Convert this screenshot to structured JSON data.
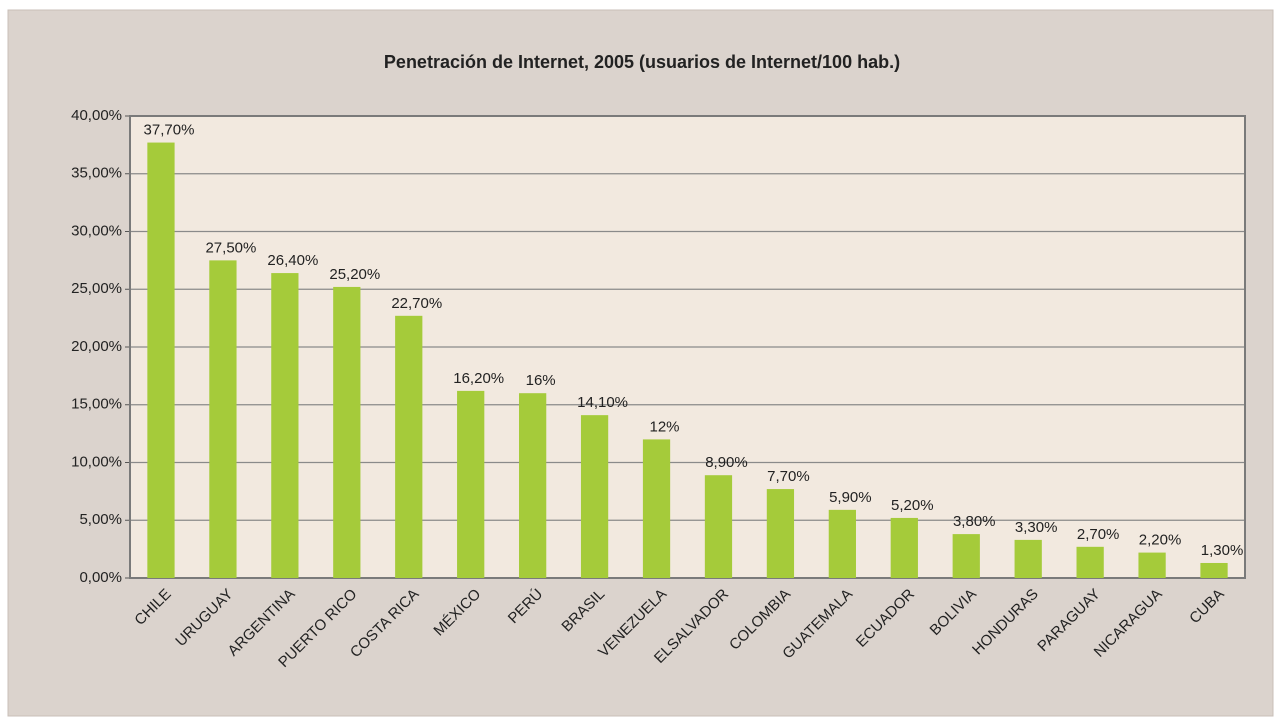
{
  "chart_data": {
    "type": "bar",
    "title": "Penetración de Internet, 2005 (usuarios de Internet/100 hab.)",
    "categories": [
      "CHILE",
      "URUGUAY",
      "ARGENTINA",
      "PUERTO RICO",
      "COSTA RICA",
      "MÉXICO",
      "PERÚ",
      "BRASIL",
      "VENEZUELA",
      "ELSALVADOR",
      "COLOMBIA",
      "GUATEMALA",
      "ECUADOR",
      "BOLIVIA",
      "HONDURAS",
      "PARAGUAY",
      "NICARAGUA",
      "CUBA"
    ],
    "values": [
      37.7,
      27.5,
      26.4,
      25.2,
      22.7,
      16.2,
      16,
      14.1,
      12,
      8.9,
      7.7,
      5.9,
      5.2,
      3.8,
      3.3,
      2.7,
      2.2,
      1.3
    ],
    "value_labels": [
      "37,70%",
      "27,50%",
      "26,40%",
      "25,20%",
      "22,70%",
      "16,20%",
      "16%",
      "14,10%",
      "12%",
      "8,90%",
      "7,70%",
      "5,90%",
      "5,20%",
      "3,80%",
      "3,30%",
      "2,70%",
      "2,20%",
      "1,30%"
    ],
    "color": "#a5cb3a",
    "ylim": [
      0,
      40
    ],
    "yticks": [
      {
        "value": 0,
        "label": "0,00%"
      },
      {
        "value": 5,
        "label": "5,00%"
      },
      {
        "value": 10,
        "label": "10,00%"
      },
      {
        "value": 15,
        "label": "15,00%"
      },
      {
        "value": 20,
        "label": "20,00%"
      },
      {
        "value": 25,
        "label": "25,00%"
      },
      {
        "value": 30,
        "label": "30,00%"
      },
      {
        "value": 35,
        "label": "35,00%"
      },
      {
        "value": 40,
        "label": "40,00%"
      }
    ],
    "grid": true
  }
}
